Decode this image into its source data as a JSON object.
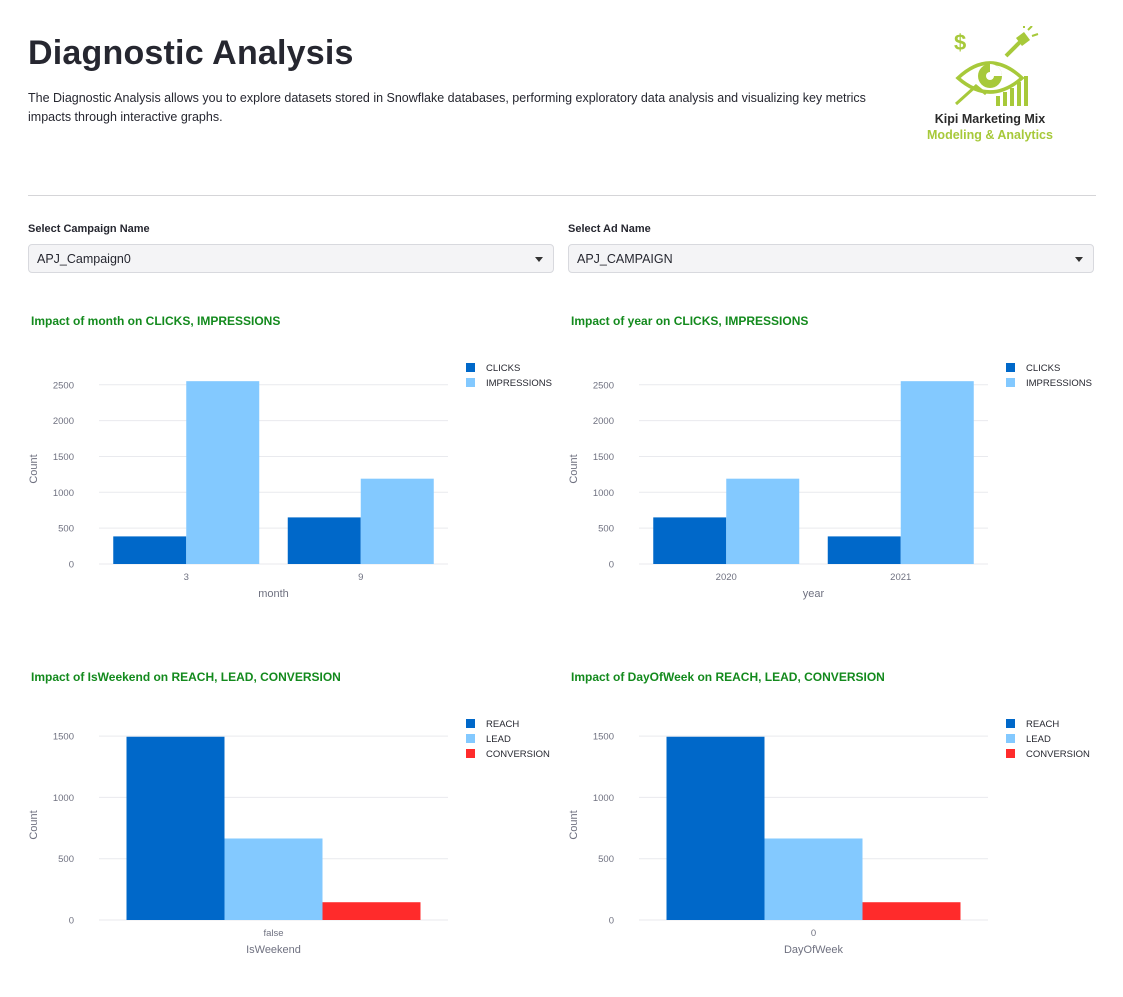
{
  "header": {
    "title": "Diagnostic Analysis",
    "description": "The Diagnostic Analysis allows you to explore datasets stored in Snowflake databases, performing exploratory data analysis and visualizing key metrics impacts through interactive graphs.",
    "logo_line1": "Kipi Marketing Mix",
    "logo_line2": "Modeling & Analytics"
  },
  "filters": {
    "campaign": {
      "label": "Select Campaign Name",
      "value": "APJ_Campaign0"
    },
    "ad": {
      "label": "Select Ad Name",
      "value": "APJ_CAMPAIGN"
    }
  },
  "colors": {
    "blue": "#0068c9",
    "light_blue": "#83c9ff",
    "red": "#ff2b2b",
    "title_green": "#138a1d"
  },
  "chart_data": [
    {
      "type": "bar",
      "title": "Impact of month on CLICKS, IMPRESSIONS",
      "xlabel": "month",
      "ylabel": "Count",
      "categories": [
        "3",
        "9"
      ],
      "yticks": [
        0,
        500,
        1000,
        1500,
        2000,
        2500
      ],
      "ylim": [
        0,
        2650
      ],
      "legend_position": "top-right",
      "series": [
        {
          "name": "CLICKS",
          "color": "#0068c9",
          "values": [
            385,
            650
          ]
        },
        {
          "name": "IMPRESSIONS",
          "color": "#83c9ff",
          "values": [
            2550,
            1190
          ]
        }
      ]
    },
    {
      "type": "bar",
      "title": "Impact of year on CLICKS, IMPRESSIONS",
      "xlabel": "year",
      "ylabel": "Count",
      "categories": [
        "2020",
        "2021"
      ],
      "yticks": [
        0,
        500,
        1000,
        1500,
        2000,
        2500
      ],
      "ylim": [
        0,
        2650
      ],
      "legend_position": "top-right",
      "series": [
        {
          "name": "CLICKS",
          "color": "#0068c9",
          "values": [
            650,
            385
          ]
        },
        {
          "name": "IMPRESSIONS",
          "color": "#83c9ff",
          "values": [
            1190,
            2550
          ]
        }
      ]
    },
    {
      "type": "bar",
      "title": "Impact of IsWeekend on REACH, LEAD, CONVERSION",
      "xlabel": "IsWeekend",
      "ylabel": "Count",
      "categories": [
        "false"
      ],
      "yticks": [
        0,
        500,
        1000,
        1500
      ],
      "ylim": [
        0,
        1550
      ],
      "legend_position": "top-right",
      "series": [
        {
          "name": "REACH",
          "color": "#0068c9",
          "values": [
            1495
          ]
        },
        {
          "name": "LEAD",
          "color": "#83c9ff",
          "values": [
            665
          ]
        },
        {
          "name": "CONVERSION",
          "color": "#ff2b2b",
          "values": [
            145
          ]
        }
      ]
    },
    {
      "type": "bar",
      "title": "Impact of DayOfWeek on REACH, LEAD, CONVERSION",
      "xlabel": "DayOfWeek",
      "ylabel": "Count",
      "categories": [
        "0"
      ],
      "yticks": [
        0,
        500,
        1000,
        1500
      ],
      "ylim": [
        0,
        1550
      ],
      "legend_position": "top-right",
      "series": [
        {
          "name": "REACH",
          "color": "#0068c9",
          "values": [
            1495
          ]
        },
        {
          "name": "LEAD",
          "color": "#83c9ff",
          "values": [
            665
          ]
        },
        {
          "name": "CONVERSION",
          "color": "#ff2b2b",
          "values": [
            145
          ]
        }
      ]
    }
  ]
}
